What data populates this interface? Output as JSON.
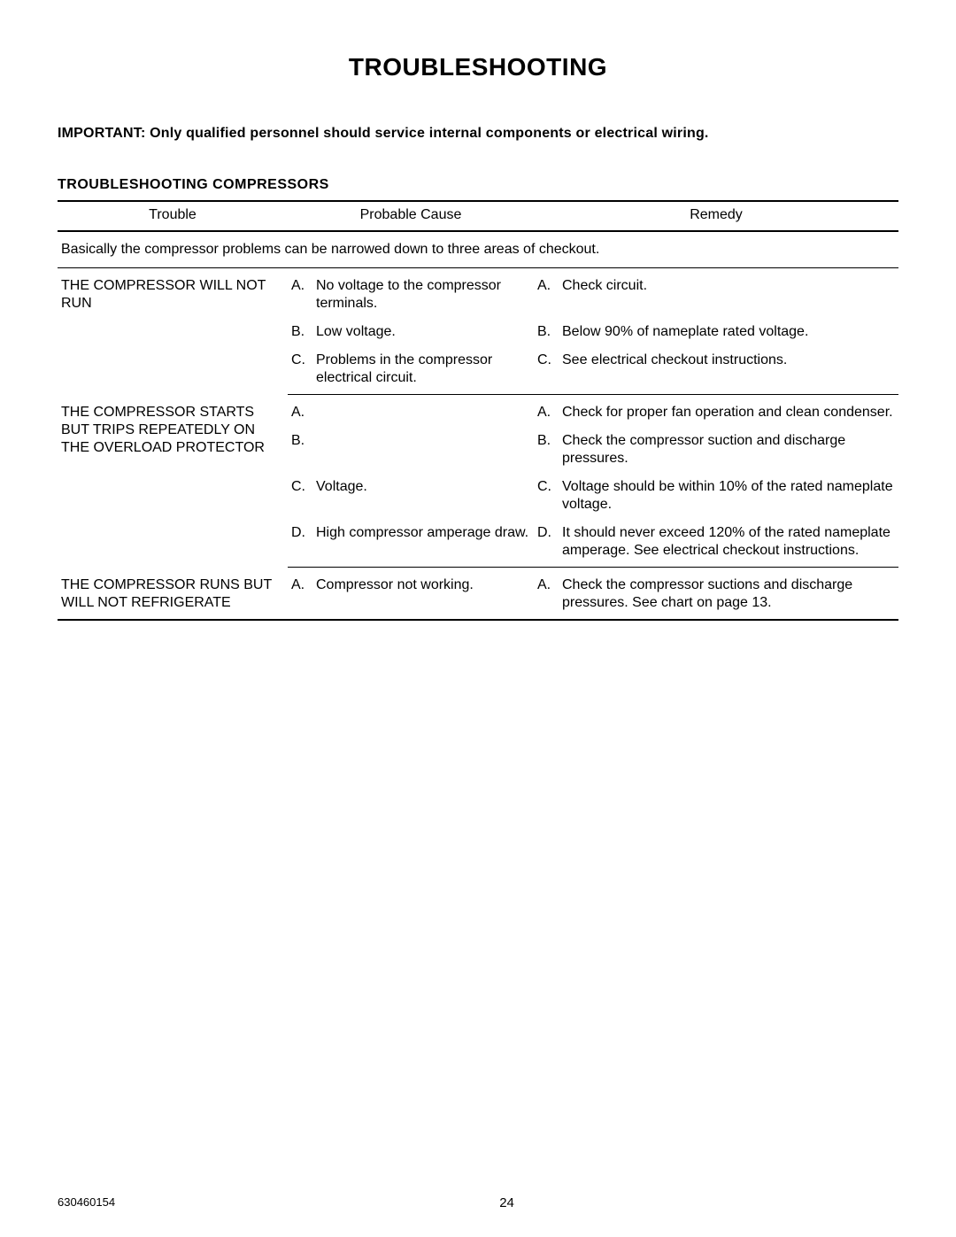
{
  "page": {
    "title": "TROUBLESHOOTING",
    "important": "IMPORTANT:  Only qualified personnel should service internal components or electrical wiring.",
    "subheading": "TROUBLESHOOTING  COMPRESSORS",
    "doc_number": "630460154",
    "page_number": "24"
  },
  "table": {
    "headers": {
      "trouble": "Trouble",
      "cause": "Probable Cause",
      "remedy": "Remedy"
    },
    "intro": "Basically the compressor problems can be narrowed down to three areas of checkout.",
    "sections": [
      {
        "trouble": "THE COMPRESSOR WILL NOT RUN",
        "rows": [
          {
            "letter": "A.",
            "cause": "No voltage to the compressor terminals.",
            "r_letter": "A.",
            "remedy": "Check circuit."
          },
          {
            "letter": "B.",
            "cause": "Low voltage.",
            "r_letter": "B.",
            "remedy": "Below 90% of nameplate rated voltage."
          },
          {
            "letter": "C.",
            "cause": "Problems in the compressor electrical circuit.",
            "r_letter": "C.",
            "remedy": "See electrical checkout instructions."
          }
        ]
      },
      {
        "trouble": "THE COMPRESSOR STARTS BUT TRIPS REPEATEDLY ON THE OVERLOAD PROTECTOR",
        "rows": [
          {
            "letter": "A.",
            "cause": "",
            "r_letter": "A.",
            "remedy": "Check for proper fan operation and clean condenser."
          },
          {
            "letter": "B.",
            "cause": "",
            "r_letter": "B.",
            "remedy": "Check the compressor suction and discharge pressures."
          },
          {
            "letter": "C.",
            "cause": "Voltage.",
            "r_letter": "C.",
            "remedy": "Voltage should be within 10% of the rated nameplate voltage."
          },
          {
            "letter": "D.",
            "cause": "High compressor amperage draw.",
            "r_letter": "D.",
            "remedy": "It should never exceed 120% of the rated nameplate amperage. See electrical checkout instructions."
          }
        ]
      },
      {
        "trouble": "THE COMPRESSOR RUNS BUT WILL NOT REFRIGERATE",
        "rows": [
          {
            "letter": "A.",
            "cause": "Compressor not working.",
            "r_letter": "A.",
            "remedy": "Check the compressor suctions and discharge pressures. See chart on page 13."
          }
        ]
      }
    ]
  }
}
